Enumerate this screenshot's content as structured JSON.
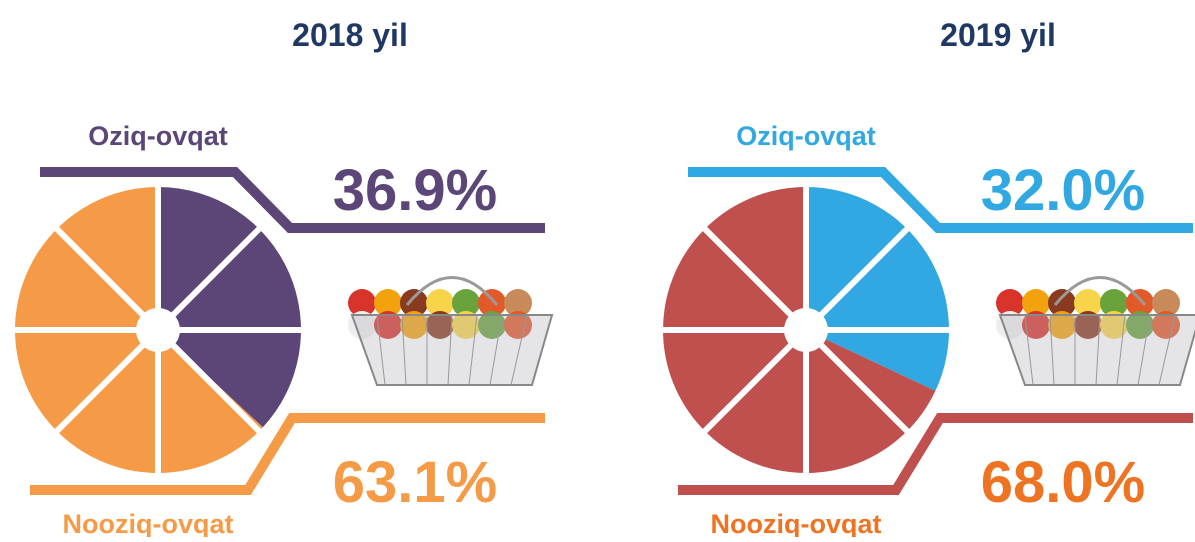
{
  "chart_data": [
    {
      "type": "pie",
      "title": "2018 yil",
      "categories": [
        "Oziq-ovqat",
        "Nooziq-ovqat"
      ],
      "values": [
        36.9,
        63.1
      ],
      "value_labels": [
        "36.9%",
        "63.1%"
      ],
      "colors": [
        "#5b4677",
        "#f59a46"
      ],
      "label_colors": [
        "#5b4677",
        "#f59a46"
      ]
    },
    {
      "type": "pie",
      "title": "2019 yil",
      "categories": [
        "Oziq-ovqat",
        "Nooziq-ovqat"
      ],
      "values": [
        32.0,
        68.0
      ],
      "value_labels": [
        "32.0%",
        "68.0%"
      ],
      "colors": [
        "#32a8e2",
        "#c0504d"
      ],
      "label_colors": [
        "#32a8e2",
        "#ee7322"
      ]
    }
  ]
}
